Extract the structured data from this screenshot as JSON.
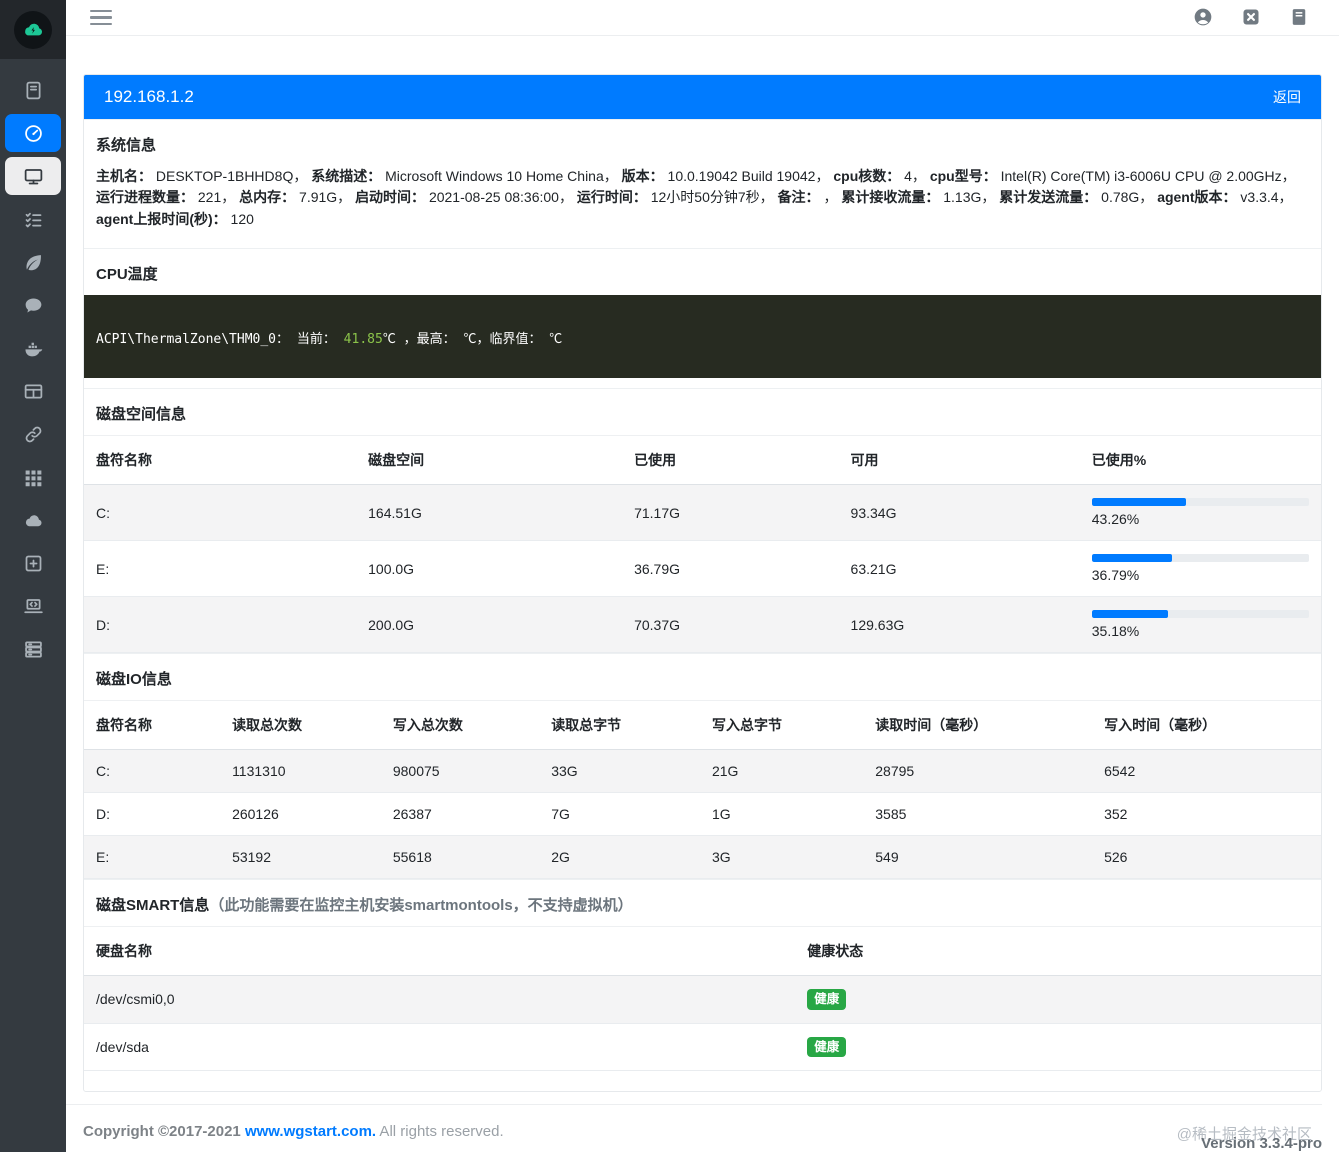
{
  "colors": {
    "accent_blue": "#007bff",
    "sidebar_dark": "#343a40",
    "terminal_bg": "#272b21",
    "terminal_green": "#8bc34a",
    "badge_green": "#28a745",
    "logo_green": "#1dc796"
  },
  "topbar": {
    "hamburger_icon": "menu-icon",
    "actions": [
      {
        "name": "user-icon",
        "icon": "user-circle"
      },
      {
        "name": "close-window-icon",
        "icon": "close-square"
      },
      {
        "name": "docs-icon",
        "icon": "journal"
      }
    ]
  },
  "sidebar": {
    "logo_icon": "cloud-logo-icon",
    "items": [
      {
        "name": "sidebar-item-hosts",
        "icon": "book",
        "state": "normal"
      },
      {
        "name": "sidebar-item-dashboard",
        "icon": "dashboard",
        "state": "active"
      },
      {
        "name": "sidebar-item-host-detail",
        "icon": "desktop",
        "state": "current"
      },
      {
        "name": "sidebar-item-tasks",
        "icon": "tasks",
        "state": "normal"
      },
      {
        "name": "sidebar-item-springboot",
        "icon": "leaf",
        "state": "normal"
      },
      {
        "name": "sidebar-item-messages",
        "icon": "comment",
        "state": "normal"
      },
      {
        "name": "sidebar-item-docker",
        "icon": "docker",
        "state": "normal"
      },
      {
        "name": "sidebar-item-tables",
        "icon": "table",
        "state": "normal"
      },
      {
        "name": "sidebar-item-links",
        "icon": "link",
        "state": "normal"
      },
      {
        "name": "sidebar-item-apps",
        "icon": "grid",
        "state": "normal"
      },
      {
        "name": "sidebar-item-cloud",
        "icon": "cloud",
        "state": "normal"
      },
      {
        "name": "sidebar-item-add",
        "icon": "plus-square",
        "state": "normal"
      },
      {
        "name": "sidebar-item-webssh",
        "icon": "laptop-code",
        "state": "normal"
      },
      {
        "name": "sidebar-item-servers",
        "icon": "server",
        "state": "normal"
      }
    ]
  },
  "panel": {
    "header": {
      "title": "192.168.1.2",
      "back_label": "返回"
    },
    "system_info": {
      "title": "系统信息",
      "fields": [
        {
          "label": "主机名",
          "value": "DESKTOP-1BHHD8Q"
        },
        {
          "label": "系统描述",
          "value": "Microsoft Windows 10 Home China"
        },
        {
          "label": "版本",
          "value": "10.0.19042 Build 19042"
        },
        {
          "label": "cpu核数",
          "value": "4"
        },
        {
          "label": "cpu型号",
          "value": "Intel(R) Core(TM) i3-6006U CPU @ 2.00GHz"
        },
        {
          "label": "运行进程数量",
          "value": "221"
        },
        {
          "label": "总内存",
          "value": "7.91G"
        },
        {
          "label": "启动时间",
          "value": "2021-08-25 08:36:00"
        },
        {
          "label": "运行时间",
          "value": "12小时50分钟7秒"
        },
        {
          "label": "备注",
          "value": ""
        },
        {
          "label": "累计接收流量",
          "value": "1.13G"
        },
        {
          "label": "累计发送流量",
          "value": "0.78G"
        },
        {
          "label": "agent版本",
          "value": "v3.3.4"
        },
        {
          "label": "agent上报时间(秒)",
          "value": "120"
        }
      ]
    },
    "cpu_temp": {
      "title": "CPU温度",
      "prefix": "ACPI\\ThermalZone\\THM0_0：  当前： ",
      "current_value": "41.85",
      "suffix": "℃ ，最高： ℃，临界值： ℃"
    },
    "disk_space": {
      "title": "磁盘空间信息",
      "headers": [
        "盘符名称",
        "磁盘空间",
        "已使用",
        "可用",
        "已使用%"
      ],
      "rows": [
        {
          "name": "C:",
          "total": "164.51G",
          "used": "71.17G",
          "avail": "93.34G",
          "percent": 43.26,
          "percent_label": "43.26%"
        },
        {
          "name": "E:",
          "total": "100.0G",
          "used": "36.79G",
          "avail": "63.21G",
          "percent": 36.79,
          "percent_label": "36.79%"
        },
        {
          "name": "D:",
          "total": "200.0G",
          "used": "70.37G",
          "avail": "129.63G",
          "percent": 35.18,
          "percent_label": "35.18%"
        }
      ]
    },
    "disk_io": {
      "title": "磁盘IO信息",
      "headers": [
        "盘符名称",
        "读取总次数",
        "写入总次数",
        "读取总字节",
        "写入总字节",
        "读取时间（毫秒）",
        "写入时间（毫秒）"
      ],
      "rows": [
        [
          "C:",
          "1131310",
          "980075",
          "33G",
          "21G",
          "28795",
          "6542"
        ],
        [
          "D:",
          "260126",
          "26387",
          "7G",
          "1G",
          "3585",
          "352"
        ],
        [
          "E:",
          "53192",
          "55618",
          "2G",
          "3G",
          "549",
          "526"
        ]
      ]
    },
    "smart": {
      "title": "磁盘SMART信息",
      "note": "（此功能需要在监控主机安装smartmontools，不支持虚拟机）",
      "headers": [
        "硬盘名称",
        "健康状态"
      ],
      "rows": [
        {
          "name": "/dev/csmi0,0",
          "status": "健康"
        },
        {
          "name": "/dev/sda",
          "status": "健康"
        }
      ]
    }
  },
  "footer": {
    "copyright_prefix": "Copyright ©2017-2021 ",
    "link_text": "www.wgstart.com.",
    "rights_text": " All rights reserved.",
    "watermark": "@稀土掘金技术社区",
    "version": "Version 3.3.4-pro"
  }
}
